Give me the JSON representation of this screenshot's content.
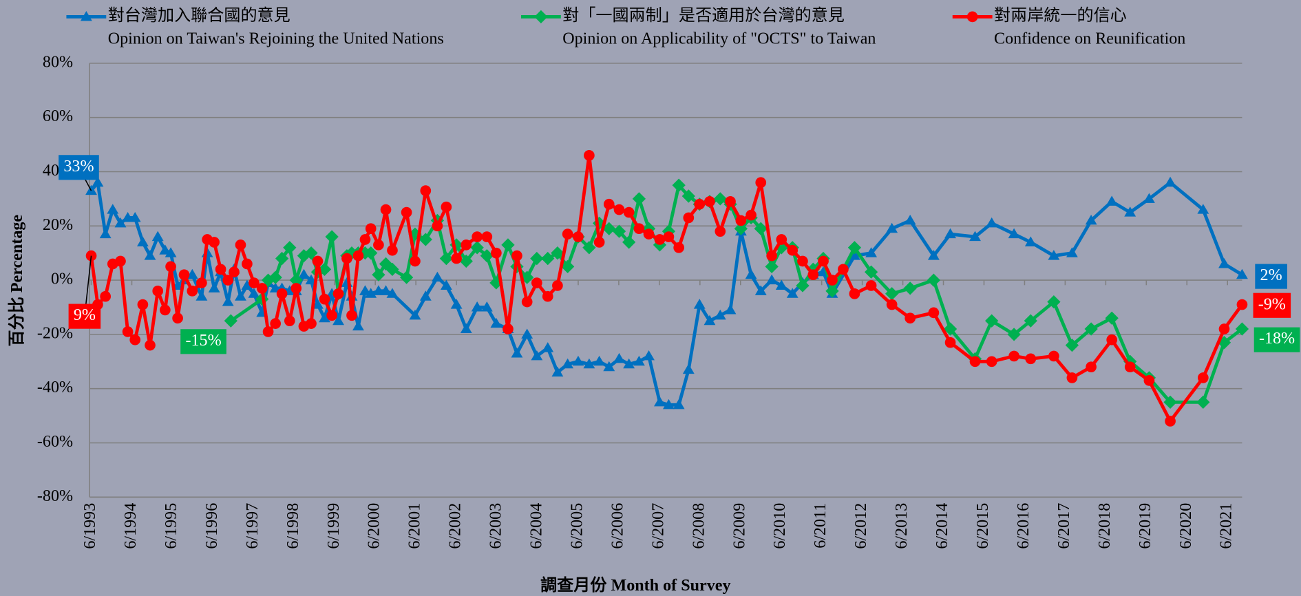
{
  "chart_data": {
    "type": "line",
    "x_axis_label": "調查月份 Month of Survey",
    "y_axis_label": "百分比 Percentage",
    "xlim": [
      1993.38,
      2021.78
    ],
    "ylim": [
      -80,
      80
    ],
    "yticks": [
      {
        "value": -80,
        "label": "-80%"
      },
      {
        "value": -60,
        "label": "-60%"
      },
      {
        "value": -40,
        "label": "-40%"
      },
      {
        "value": -20,
        "label": "-20%"
      },
      {
        "value": 0,
        "label": "0%"
      },
      {
        "value": 20,
        "label": "20%"
      },
      {
        "value": 40,
        "label": "40%"
      },
      {
        "value": 60,
        "label": "60%"
      },
      {
        "value": 80,
        "label": "80%"
      }
    ],
    "xticks": [
      {
        "value": 1993.42,
        "label": "6/1993"
      },
      {
        "value": 1994.42,
        "label": "6/1994"
      },
      {
        "value": 1995.42,
        "label": "6/1995"
      },
      {
        "value": 1996.42,
        "label": "6/1996"
      },
      {
        "value": 1997.42,
        "label": "6/1997"
      },
      {
        "value": 1998.42,
        "label": "6/1998"
      },
      {
        "value": 1999.42,
        "label": "6/1999"
      },
      {
        "value": 2000.42,
        "label": "6/2000"
      },
      {
        "value": 2001.42,
        "label": "6/2001"
      },
      {
        "value": 2002.42,
        "label": "6/2002"
      },
      {
        "value": 2003.42,
        "label": "6/2003"
      },
      {
        "value": 2004.42,
        "label": "6/2004"
      },
      {
        "value": 2005.42,
        "label": "6/2005"
      },
      {
        "value": 2006.42,
        "label": "6/2006"
      },
      {
        "value": 2007.42,
        "label": "6/2007"
      },
      {
        "value": 2008.42,
        "label": "6/2008"
      },
      {
        "value": 2009.42,
        "label": "6/2009"
      },
      {
        "value": 2010.42,
        "label": "6/2010"
      },
      {
        "value": 2011.42,
        "label": "6/2011"
      },
      {
        "value": 2012.42,
        "label": "6/2012"
      },
      {
        "value": 2013.42,
        "label": "6/2013"
      },
      {
        "value": 2014.42,
        "label": "6/2014"
      },
      {
        "value": 2015.42,
        "label": "6/2015"
      },
      {
        "value": 2016.42,
        "label": "6/2016"
      },
      {
        "value": 2017.42,
        "label": "6/2017"
      },
      {
        "value": 2018.42,
        "label": "6/2018"
      },
      {
        "value": 2019.42,
        "label": "6/2019"
      },
      {
        "value": 2020.42,
        "label": "6/2020"
      },
      {
        "value": 2021.42,
        "label": "6/2021"
      }
    ],
    "grid": true,
    "series": [
      {
        "name": "對台灣加入聯合國的意見",
        "name_en": "Opinion on Taiwan's Rejoining the United Nations",
        "color": "#0070c0",
        "marker": "triangle",
        "first_label": "33%",
        "last_label": "2%",
        "x": [
          1993.42,
          1993.58,
          1993.77,
          1993.95,
          1994.14,
          1994.32,
          1994.5,
          1994.69,
          1994.87,
          1995.06,
          1995.24,
          1995.38,
          1995.55,
          1995.71,
          1995.91,
          1996.14,
          1996.28,
          1996.45,
          1996.61,
          1996.79,
          1996.94,
          1997.1,
          1997.26,
          1997.43,
          1997.63,
          1997.78,
          1997.96,
          1998.12,
          1998.31,
          1998.47,
          1998.66,
          1998.84,
          1999,
          1999.17,
          1999.35,
          1999.51,
          1999.72,
          1999.84,
          2000,
          2000.17,
          2000.31,
          2000.5,
          2000.68,
          2000.84,
          2001.4,
          2001.66,
          2001.95,
          2002.17,
          2002.42,
          2002.66,
          2002.93,
          2003.17,
          2003.4,
          2003.69,
          2003.91,
          2004.16,
          2004.4,
          2004.67,
          2004.91,
          2005.16,
          2005.42,
          2005.69,
          2005.94,
          2006.18,
          2006.43,
          2006.67,
          2006.92,
          2007.16,
          2007.43,
          2007.65,
          2007.9,
          2008.14,
          2008.41,
          2008.66,
          2008.92,
          2009.17,
          2009.43,
          2009.68,
          2009.92,
          2010.19,
          2010.43,
          2010.7,
          2010.95,
          2011.21,
          2011.46,
          2011.68,
          2012.23,
          2012.64,
          2013.15,
          2013.6,
          2014.18,
          2014.59,
          2015.2,
          2015.61,
          2016.16,
          2016.57,
          2017.14,
          2017.59,
          2018.06,
          2018.57,
          2019.02,
          2019.49,
          2020.01,
          2020.82,
          2021.34,
          2021.78
        ],
        "values": [
          33,
          36,
          17,
          26,
          21,
          23,
          23,
          14,
          9,
          16,
          11,
          10,
          -2,
          0,
          2,
          -6,
          10,
          -3,
          3,
          -8,
          4,
          -6,
          -2,
          -5,
          -12,
          -1,
          -3,
          -3,
          -4,
          -4,
          2,
          0,
          -9,
          -14,
          -5,
          -15,
          -1,
          -6,
          -17,
          -4,
          -5,
          -4,
          -4,
          -5,
          -13,
          -6,
          1,
          -2,
          -9,
          -18,
          -10,
          -10,
          -16,
          -18,
          -27,
          -20,
          -28,
          -25,
          -34,
          -31,
          -30,
          -31,
          -30,
          -32,
          -29,
          -31,
          -30,
          -28,
          -45,
          -46,
          -46,
          -33,
          -9,
          -15,
          -13,
          -11,
          18,
          2,
          -4,
          0,
          -2,
          -5,
          -1,
          2,
          3,
          -5,
          9,
          10,
          19,
          22,
          9,
          17,
          16,
          21,
          17,
          14,
          9,
          10,
          22,
          29,
          25,
          30,
          36,
          26,
          6,
          2
        ]
      },
      {
        "name": "對「一國兩制」是否適用於台灣的意見",
        "name_en": "Opinion on Applicability of \"OCTS\" to Taiwan",
        "color": "#00b050",
        "marker": "diamond",
        "first_label": "-15%",
        "last_label": "-18%",
        "x": [
          1996.86,
          1997.63,
          1997.78,
          1997.96,
          1998.12,
          1998.31,
          1998.47,
          1998.66,
          1998.84,
          1999,
          1999.17,
          1999.35,
          1999.51,
          1999.72,
          1999.84,
          2000,
          2000.17,
          2000.31,
          2000.5,
          2000.68,
          2000.84,
          2001.19,
          2001.4,
          2001.66,
          2001.95,
          2002.17,
          2002.42,
          2002.66,
          2002.93,
          2003.17,
          2003.4,
          2003.69,
          2003.91,
          2004.16,
          2004.4,
          2004.67,
          2004.91,
          2005.16,
          2005.42,
          2005.69,
          2005.94,
          2006.18,
          2006.43,
          2006.67,
          2006.92,
          2007.16,
          2007.43,
          2007.65,
          2007.9,
          2008.14,
          2008.41,
          2008.66,
          2008.92,
          2009.17,
          2009.43,
          2009.68,
          2009.92,
          2010.19,
          2010.43,
          2010.7,
          2010.95,
          2011.21,
          2011.46,
          2011.68,
          2012.23,
          2012.64,
          2013.15,
          2013.6,
          2014.18,
          2014.59,
          2015.2,
          2015.61,
          2016.16,
          2016.57,
          2017.14,
          2017.59,
          2018.06,
          2018.57,
          2019.02,
          2019.49,
          2020.01,
          2020.82,
          2021.34,
          2021.78
        ],
        "values": [
          -15,
          -7,
          0,
          1,
          8,
          12,
          0,
          9,
          10,
          3,
          4,
          16,
          -5,
          9,
          10,
          10,
          10,
          10,
          2,
          6,
          4,
          1,
          17,
          15,
          22,
          8,
          13,
          7,
          12,
          9,
          -1,
          13,
          5,
          1,
          8,
          8,
          10,
          5,
          16,
          12,
          21,
          19,
          18,
          14,
          30,
          19,
          13,
          18,
          35,
          31,
          28,
          29,
          30,
          28,
          19,
          23,
          19,
          5,
          12,
          12,
          -2,
          4,
          8,
          -4,
          12,
          3,
          -5,
          -3,
          0,
          -18,
          -29,
          -15,
          -20,
          -15,
          -8,
          -24,
          -18,
          -14,
          -30,
          -36,
          -45,
          -45,
          -23,
          -18
        ]
      },
      {
        "name": "對兩岸統一的信心",
        "name_en": "Confidence on Reunification",
        "color": "#ff0000",
        "marker": "circle",
        "first_label": "9%",
        "last_label": "-9%",
        "x": [
          1993.42,
          1993.58,
          1993.77,
          1993.95,
          1994.14,
          1994.32,
          1994.5,
          1994.69,
          1994.87,
          1995.06,
          1995.24,
          1995.38,
          1995.55,
          1995.71,
          1995.91,
          1996.14,
          1996.28,
          1996.45,
          1996.61,
          1996.79,
          1996.94,
          1997.1,
          1997.26,
          1997.43,
          1997.63,
          1997.78,
          1997.96,
          1998.12,
          1998.31,
          1998.47,
          1998.66,
          1998.84,
          1999,
          1999.17,
          1999.35,
          1999.51,
          1999.72,
          1999.84,
          2000,
          2000.17,
          2000.31,
          2000.5,
          2000.68,
          2000.84,
          2001.19,
          2001.4,
          2001.66,
          2001.95,
          2002.17,
          2002.42,
          2002.66,
          2002.93,
          2003.17,
          2003.4,
          2003.69,
          2003.91,
          2004.16,
          2004.4,
          2004.67,
          2004.91,
          2005.16,
          2005.42,
          2005.69,
          2005.94,
          2006.18,
          2006.43,
          2006.67,
          2006.92,
          2007.16,
          2007.43,
          2007.65,
          2007.9,
          2008.14,
          2008.41,
          2008.66,
          2008.92,
          2009.17,
          2009.43,
          2009.68,
          2009.92,
          2010.19,
          2010.43,
          2010.7,
          2010.95,
          2011.21,
          2011.46,
          2011.68,
          2011.95,
          2012.23,
          2012.64,
          2013.15,
          2013.6,
          2014.18,
          2014.59,
          2015.2,
          2015.61,
          2016.16,
          2016.57,
          2017.14,
          2017.59,
          2018.06,
          2018.57,
          2019.02,
          2019.49,
          2020.01,
          2020.82,
          2021.34,
          2021.78
        ],
        "values": [
          9,
          -9,
          -6,
          6,
          7,
          -19,
          -22,
          -9,
          -24,
          -4,
          -11,
          5,
          -14,
          2,
          -4,
          -1,
          15,
          14,
          4,
          0,
          3,
          13,
          6,
          -1,
          -3,
          -19,
          -16,
          -5,
          -15,
          -3,
          -17,
          -16,
          7,
          -7,
          -13,
          -5,
          8,
          -13,
          9,
          15,
          19,
          13,
          26,
          11,
          25,
          7,
          33,
          20,
          27,
          8,
          13,
          16,
          16,
          10,
          -18,
          9,
          -8,
          -1,
          -6,
          -2,
          17,
          16,
          46,
          14,
          28,
          26,
          25,
          19,
          17,
          15,
          16,
          12,
          23,
          28,
          29,
          18,
          29,
          22,
          24,
          36,
          9,
          15,
          11,
          7,
          2,
          7,
          0,
          4,
          -5,
          -2,
          -9,
          -14,
          -12,
          -23,
          -30,
          -30,
          -28,
          -29,
          -28,
          -36,
          -32,
          -22,
          -32,
          -37,
          -52,
          -36,
          -18,
          -9
        ]
      }
    ]
  }
}
